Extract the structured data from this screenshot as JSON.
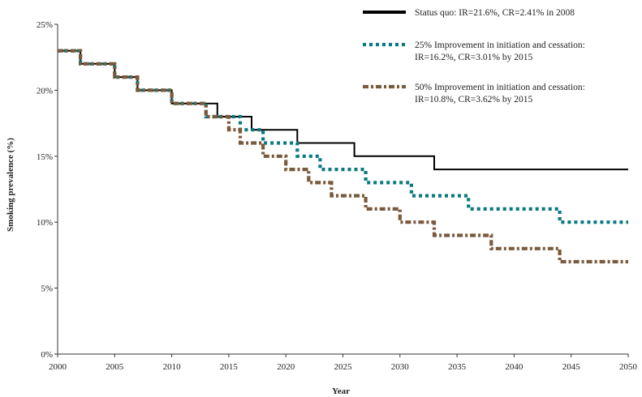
{
  "chart_data": {
    "type": "line",
    "xlabel": "Year",
    "ylabel": "Smoking prevalence (%)",
    "xlim": [
      2000,
      2050
    ],
    "ylim": [
      0,
      25
    ],
    "x_ticks": [
      "2000",
      "2005",
      "2010",
      "2015",
      "2020",
      "2025",
      "2030",
      "2035",
      "2040",
      "2045",
      "2050"
    ],
    "y_ticks": [
      "0%",
      "5%",
      "10%",
      "15%",
      "20%",
      "25%"
    ],
    "grid": false,
    "legend_position": "top-right",
    "x": [
      2000,
      2001,
      2002,
      2003,
      2004,
      2005,
      2006,
      2007,
      2008,
      2009,
      2010,
      2011,
      2012,
      2013,
      2014,
      2015,
      2016,
      2017,
      2018,
      2019,
      2020,
      2021,
      2022,
      2023,
      2024,
      2025,
      2026,
      2027,
      2028,
      2029,
      2030,
      2031,
      2032,
      2033,
      2034,
      2035,
      2036,
      2037,
      2038,
      2039,
      2040,
      2041,
      2042,
      2043,
      2044,
      2045,
      2046,
      2047,
      2048,
      2049,
      2050
    ],
    "series": [
      {
        "name": "Status quo: IR=21.6%, CR=2.41% in 2008",
        "label_lines": [
          "Status quo: IR=21.6%, CR=2.41% in 2008"
        ],
        "color": "#000000",
        "style": "solid",
        "values": [
          23,
          23,
          22,
          22,
          22,
          21,
          21,
          20,
          20,
          20,
          19,
          19,
          19,
          19,
          18,
          18,
          18,
          17,
          17,
          17,
          17,
          16,
          16,
          16,
          16,
          16,
          15,
          15,
          15,
          15,
          15,
          15,
          15,
          14,
          14,
          14,
          14,
          14,
          14,
          14,
          14,
          14,
          14,
          14,
          14,
          14,
          14,
          14,
          14,
          14,
          14
        ]
      },
      {
        "name": "25% Improvement in initiation and cessation: IR=16.2%, CR=3.01% by 2015",
        "label_lines": [
          "25% Improvement in initiation and cessation:",
          "IR=16.2%, CR=3.01% by 2015"
        ],
        "color": "#0b7a80",
        "style": "dotted",
        "values": [
          23,
          23,
          22,
          22,
          22,
          21,
          21,
          20,
          20,
          20,
          19,
          19,
          19,
          18,
          18,
          18,
          17,
          17,
          16,
          16,
          16,
          15,
          15,
          14,
          14,
          14,
          14,
          13,
          13,
          13,
          13,
          12,
          12,
          12,
          12,
          12,
          11,
          11,
          11,
          11,
          11,
          11,
          11,
          11,
          10,
          10,
          10,
          10,
          10,
          10,
          10
        ]
      },
      {
        "name": "50% Improvement in initiation and cessation: IR=10.8%, CR=3.62% by 2015",
        "label_lines": [
          "50% Improvement in initiation and cessation:",
          "IR=10.8%, CR=3.62% by 2015"
        ],
        "color": "#7a5a3c",
        "style": "dashdot",
        "values": [
          23,
          23,
          22,
          22,
          22,
          21,
          21,
          20,
          20,
          20,
          19,
          19,
          19,
          18,
          18,
          17,
          16,
          16,
          15,
          15,
          14,
          14,
          13,
          13,
          12,
          12,
          12,
          11,
          11,
          11,
          10,
          10,
          10,
          9,
          9,
          9,
          9,
          9,
          8,
          8,
          8,
          8,
          8,
          8,
          7,
          7,
          7,
          7,
          7,
          7,
          7
        ]
      }
    ]
  }
}
